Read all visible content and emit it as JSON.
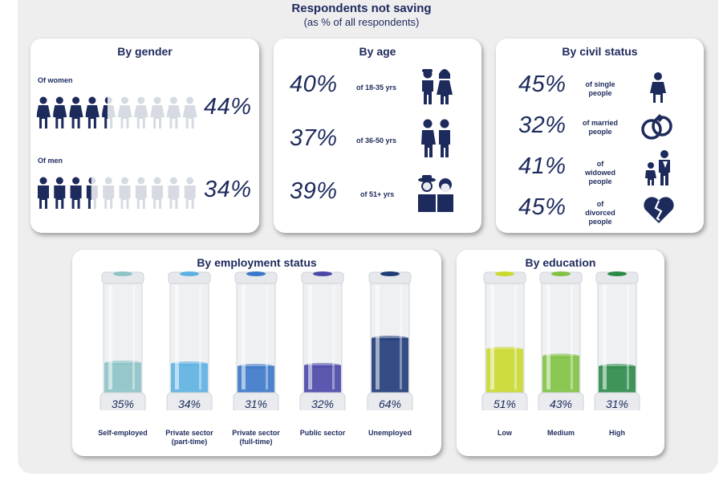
{
  "header": {
    "title": "Respondents not saving",
    "subtitle": "(as % of all respondents)"
  },
  "colors": {
    "navy": "#1d2a5c",
    "pale": "#d6dbe3"
  },
  "chart_data": [
    {
      "type": "bar",
      "title": "By gender",
      "categories": [
        "Of women",
        "Of men"
      ],
      "values": [
        44,
        34
      ],
      "labels": [
        "44%",
        "34%"
      ]
    },
    {
      "type": "bar",
      "title": "By age",
      "categories": [
        "of 18-35 yrs",
        "of 36-50 yrs",
        "of 51+ yrs"
      ],
      "values": [
        40,
        37,
        39
      ],
      "labels": [
        "40%",
        "37%",
        "39%"
      ]
    },
    {
      "type": "bar",
      "title": "By civil status",
      "categories": [
        "of single people",
        "of married people",
        "of widowed people",
        "of divorced people"
      ],
      "values": [
        45,
        32,
        41,
        45
      ],
      "labels": [
        "45%",
        "32%",
        "41%",
        "45%"
      ]
    },
    {
      "type": "bar",
      "title": "By employment status",
      "categories": [
        "Self-employed",
        "Private sector (part-time)",
        "Private sector (full-time)",
        "Public sector",
        "Unemployed"
      ],
      "values": [
        35,
        34,
        31,
        32,
        64
      ],
      "labels": [
        "35%",
        "34%",
        "31%",
        "32%",
        "64%"
      ],
      "colors": [
        "#8cc3c7",
        "#5db1e2",
        "#3b78c9",
        "#4a47a8",
        "#1f3b78"
      ]
    },
    {
      "type": "bar",
      "title": "By education",
      "categories": [
        "Low",
        "Medium",
        "High"
      ],
      "values": [
        51,
        43,
        31
      ],
      "labels": [
        "51%",
        "43%",
        "31%"
      ],
      "colors": [
        "#c9d92e",
        "#7fc241",
        "#2b8a48"
      ]
    }
  ],
  "gender_rows": [
    {
      "label": "Of women",
      "value": 44,
      "text": "44%",
      "icon": "woman-icon"
    },
    {
      "label": "Of men",
      "value": 34,
      "text": "34%",
      "icon": "man-icon"
    }
  ],
  "age_rows": [
    {
      "text": "40%",
      "label": "of 18-35 yrs",
      "icon": "young-couple-icon"
    },
    {
      "text": "37%",
      "label": "of 36-50 yrs",
      "icon": "adult-couple-icon"
    },
    {
      "text": "39%",
      "label": "of 51+ yrs",
      "icon": "elderly-couple-icon"
    }
  ],
  "civil_rows": [
    {
      "text": "45%",
      "label1": "of single",
      "label2": "people",
      "icon": "single-person-icon"
    },
    {
      "text": "32%",
      "label1": "of married",
      "label2": "people",
      "icon": "wedding-rings-icon"
    },
    {
      "text": "41%",
      "label1": "of widowed",
      "label2": "people",
      "icon": "widowed-family-icon"
    },
    {
      "text": "45%",
      "label1": "of divorced",
      "label2": "people",
      "icon": "broken-heart-icon"
    }
  ],
  "employment_captions": [
    {
      "l1": "Self-employed",
      "l2": ""
    },
    {
      "l1": "Private sector",
      "l2": "(part-time)"
    },
    {
      "l1": "Private sector",
      "l2": "(full-time)"
    },
    {
      "l1": "Public sector",
      "l2": ""
    },
    {
      "l1": "Unemployed",
      "l2": ""
    }
  ]
}
